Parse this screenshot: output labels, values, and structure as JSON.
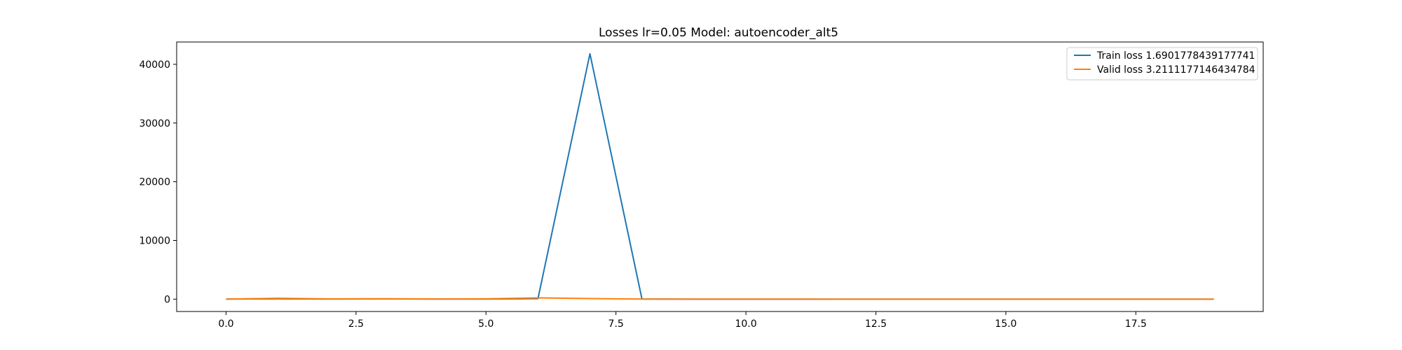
{
  "chart_data": {
    "type": "line",
    "title": "Losses lr=0.05 Model: autoencoder_alt5",
    "xlabel": "",
    "ylabel": "",
    "xlim": [
      -0.95,
      19.95
    ],
    "ylim": [
      -2100,
      43800
    ],
    "x_ticks": [
      0.0,
      2.5,
      5.0,
      7.5,
      10.0,
      12.5,
      15.0,
      17.5
    ],
    "x_tick_labels": [
      "0.0",
      "2.5",
      "5.0",
      "7.5",
      "10.0",
      "12.5",
      "15.0",
      "17.5"
    ],
    "y_ticks": [
      0,
      10000,
      20000,
      30000,
      40000
    ],
    "y_tick_labels": [
      "0",
      "10000",
      "20000",
      "30000",
      "40000"
    ],
    "grid": false,
    "legend_position": "top-right",
    "x": [
      0,
      1,
      2,
      3,
      4,
      5,
      6,
      7,
      8,
      9,
      10,
      11,
      12,
      13,
      14,
      15,
      16,
      17,
      18,
      19
    ],
    "series": [
      {
        "name": "Train loss 1.6901778439177741",
        "color": "#1f77b4",
        "values": [
          10,
          60,
          15,
          40,
          12,
          20,
          90,
          41800,
          30,
          8,
          6,
          5,
          4,
          3,
          3,
          2.5,
          2.2,
          2,
          1.8,
          1.69
        ]
      },
      {
        "name": "Valid loss 3.2111177146434784",
        "color": "#ff7f0e",
        "values": [
          20,
          150,
          40,
          80,
          30,
          60,
          220,
          110,
          20,
          15,
          12,
          10,
          8,
          7,
          6,
          5,
          4.5,
          4,
          3.5,
          3.21
        ]
      }
    ]
  }
}
